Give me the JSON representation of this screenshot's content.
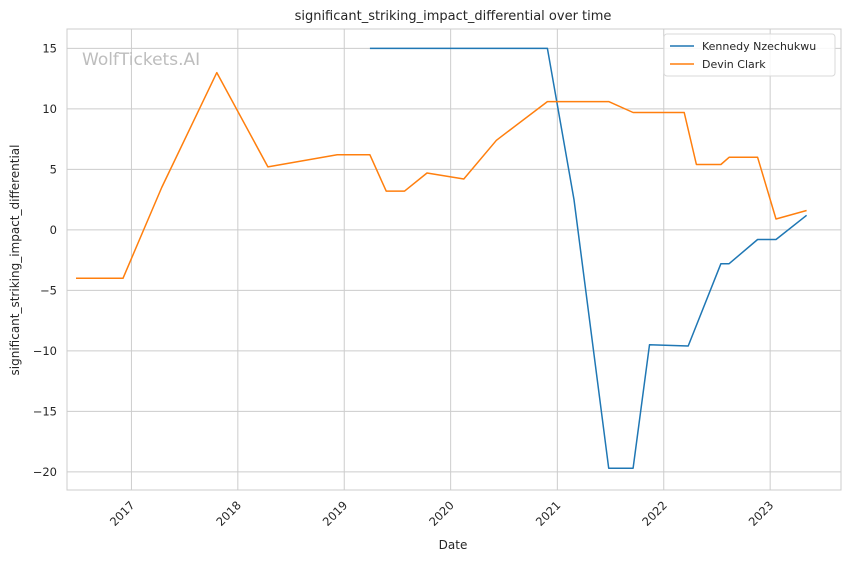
{
  "chart_data": {
    "type": "line",
    "title": "significant_striking_impact_differential over time",
    "xlabel": "Date",
    "ylabel": "significant_striking_impact_differential",
    "watermark": "WolfTickets.AI",
    "x_ticks": [
      "2017",
      "2018",
      "2019",
      "2020",
      "2021",
      "2022",
      "2023"
    ],
    "y_ticks": [
      "15",
      "10",
      "5",
      "0",
      "−5",
      "−10",
      "−15",
      "−20"
    ],
    "xlim": [
      "2016-05-25",
      "2023-09-01"
    ],
    "ylim": [
      -21.5,
      16.6
    ],
    "grid": true,
    "legend_position": "top-right",
    "series": [
      {
        "name": "Kennedy Nzechukwu",
        "color": "#1f77b4",
        "points": [
          [
            "2019-03-30",
            15.0
          ],
          [
            "2020-11-28",
            15.0
          ],
          [
            "2021-02-27",
            2.5
          ],
          [
            "2021-06-26",
            -19.7
          ],
          [
            "2021-09-18",
            -19.7
          ],
          [
            "2021-11-13",
            -9.5
          ],
          [
            "2022-03-26",
            -9.6
          ],
          [
            "2022-07-16",
            -2.8
          ],
          [
            "2022-08-13",
            -2.8
          ],
          [
            "2022-11-19",
            -0.8
          ],
          [
            "2023-01-21",
            -0.8
          ],
          [
            "2023-05-06",
            1.2
          ]
        ]
      },
      {
        "name": "Devin Clark",
        "color": "#ff7f0e",
        "points": [
          [
            "2016-06-25",
            -4.0
          ],
          [
            "2016-12-03",
            -4.0
          ],
          [
            "2017-04-15",
            3.5
          ],
          [
            "2017-10-21",
            13.0
          ],
          [
            "2018-04-14",
            5.2
          ],
          [
            "2018-12-08",
            6.2
          ],
          [
            "2019-03-30",
            6.2
          ],
          [
            "2019-05-25",
            3.2
          ],
          [
            "2019-07-27",
            3.2
          ],
          [
            "2019-10-12",
            4.7
          ],
          [
            "2020-02-15",
            4.2
          ],
          [
            "2020-06-06",
            7.4
          ],
          [
            "2020-11-28",
            10.6
          ],
          [
            "2021-06-26",
            10.6
          ],
          [
            "2021-09-18",
            9.7
          ],
          [
            "2022-03-12",
            9.7
          ],
          [
            "2022-04-23",
            5.4
          ],
          [
            "2022-07-16",
            5.4
          ],
          [
            "2022-08-13",
            6.0
          ],
          [
            "2022-11-19",
            6.0
          ],
          [
            "2023-01-21",
            0.9
          ],
          [
            "2023-05-06",
            1.6
          ]
        ]
      }
    ]
  }
}
